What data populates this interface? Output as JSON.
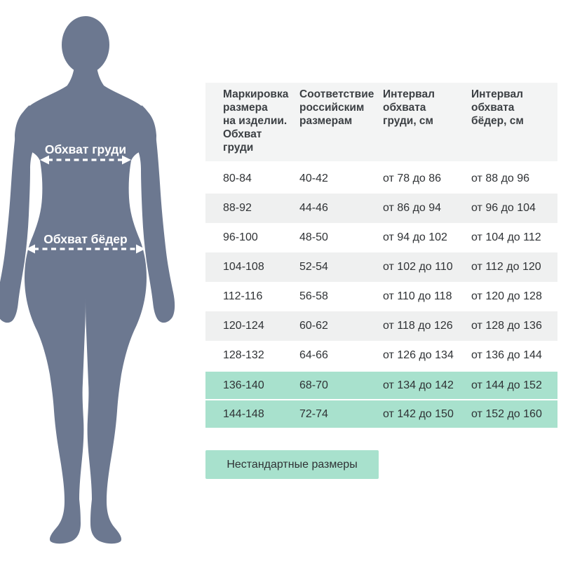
{
  "figure": {
    "chest_label": "Обхват груди",
    "hips_label": "Обхват бёдер",
    "silhouette_color": "#6c7890",
    "measure_line_color": "#ffffff"
  },
  "table": {
    "headers": [
      "Маркировка\nразмера\nна изделии.\nОбхват\nгруди",
      "Соответствие\nроссийским\nразмерам",
      "Интервал\nобхвата\nгруди, см",
      "Интервал\nобхвата\nбёдер, см"
    ],
    "column_keys": [
      "marking",
      "russian-size",
      "chest-interval",
      "hips-interval"
    ],
    "rows": [
      [
        "80-84",
        "40-42",
        "от 78 до 86",
        "от 88 до 96"
      ],
      [
        "88-92",
        "44-46",
        "от 86 до 94",
        "от 96 до 104"
      ],
      [
        "96-100",
        "48-50",
        "от 94 до 102",
        "от 104 до 112"
      ],
      [
        "104-108",
        "52-54",
        "от 102 до 110",
        "от 112 до 120"
      ],
      [
        "112-116",
        "56-58",
        "от 110 до 118",
        "от 120 до 128"
      ],
      [
        "120-124",
        "60-62",
        "от 118 до 126",
        "от 128 до 136"
      ],
      [
        "128-132",
        "64-66",
        "от 126 до 134",
        "от 136 до 144"
      ],
      [
        "136-140",
        "68-70",
        "от 134 до 142",
        "от 144 до 152"
      ],
      [
        "144-148",
        "72-74",
        "от 142 до 150",
        "от 152 до 160"
      ]
    ],
    "highlighted_rows": [
      7,
      8
    ],
    "colors": {
      "highlight": "#a8e1cd",
      "stripe": "#eff0f0",
      "header_bg": "#f3f4f4",
      "text": "#2f3235",
      "header_text": "#3c4044"
    }
  },
  "badge": {
    "label": "Нестандартные размеры"
  }
}
